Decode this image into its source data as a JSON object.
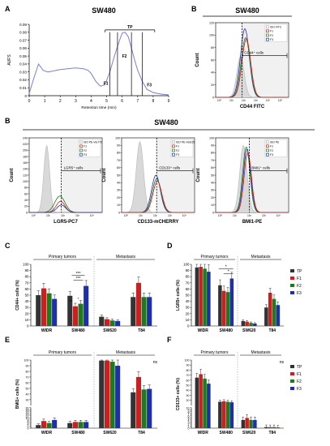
{
  "figure": {
    "colors": {
      "TP": "#333333",
      "F1": "#cc1f1f",
      "F2": "#1f7a1f",
      "F3": "#1f2fa8",
      "chrom": "#7b7fd6",
      "iso": "#b8b8b8"
    },
    "panelA": {
      "letter": "A",
      "cell": "SW480"
    },
    "panelB1": {
      "letter": "B",
      "cell": "SW480"
    },
    "panelB2": {
      "letter": "B",
      "cell": "SW480"
    },
    "panelC": {
      "letter": "C"
    },
    "panelD": {
      "letter": "D"
    },
    "panelE": {
      "letter": "E"
    },
    "panelF": {
      "letter": "F"
    }
  },
  "chart_data": [
    {
      "id": "A",
      "type": "line",
      "title": "SW480",
      "xlabel": "Retention time (min)",
      "ylabel": "AUFS",
      "xlim": [
        0,
        9
      ],
      "ylim": [
        0,
        0.09
      ],
      "x_ticks": [
        "0",
        "1",
        "2",
        "3",
        "4",
        "5",
        "6",
        "7",
        "8",
        "9"
      ],
      "y_ticks": [
        "0",
        "0.01",
        "0.02",
        "0.03",
        "0.04",
        "0.05",
        "0.06",
        "0.07",
        "0.08",
        "0.09"
      ],
      "series": [
        {
          "x": [
            0,
            0.3,
            0.6,
            0.9,
            1.2,
            1.5,
            2.0,
            2.5,
            3.0,
            3.5,
            3.8,
            4.0,
            4.3,
            4.6,
            4.9,
            5.2,
            5.5,
            5.8,
            6.0,
            6.2,
            6.4,
            6.6,
            6.8,
            7.0,
            7.3,
            7.6,
            8.0,
            8.5,
            9.0
          ],
          "y": [
            0.003,
            0.022,
            0.04,
            0.032,
            0.03,
            0.031,
            0.033,
            0.034,
            0.035,
            0.034,
            0.032,
            0.028,
            0.018,
            0.012,
            0.014,
            0.03,
            0.05,
            0.068,
            0.079,
            0.08,
            0.074,
            0.06,
            0.045,
            0.032,
            0.018,
            0.008,
            0.004,
            0.002,
            0.001
          ]
        }
      ],
      "annotations": [
        "TP",
        "F1",
        "F2",
        "F3"
      ]
    },
    {
      "id": "B1",
      "type": "line",
      "title": "SW480",
      "xlabel": "CD44 FITC",
      "ylabel": "Count",
      "legend": [
        "ISO FITC",
        "F1",
        "F2",
        "F3"
      ],
      "gate_label": "CD44⁺ cells",
      "x_ticks": [
        "10⁰",
        "10¹",
        "10²",
        "10³",
        "10⁴",
        "10⁵"
      ],
      "y_ticks": [
        "0",
        "20",
        "40",
        "60",
        "80",
        "100",
        "120"
      ]
    },
    {
      "id": "B2",
      "type": "line",
      "title": "SW480",
      "subplots": [
        {
          "xlabel": "LGR5-PC7",
          "legend": [
            "ISO PE-Vio770",
            "F1",
            "F2",
            "F3"
          ],
          "gate_label": "LGR5⁺ cells",
          "y_ticks": [
            "0",
            "20",
            "40",
            "60",
            "80",
            "100",
            "120",
            "140",
            "160",
            "180",
            "200",
            "220",
            "240"
          ]
        },
        {
          "xlabel": "CD133-mCHERRY",
          "legend": [
            "ISO PE-Vio615",
            "F1",
            "F2",
            "F3"
          ],
          "gate_label": "CD133⁺ cells",
          "y_ticks": [
            "0",
            "10",
            "20",
            "30",
            "40",
            "50",
            "60",
            "70",
            "80",
            "90",
            "100"
          ]
        },
        {
          "xlabel": "BMI1-PE",
          "legend": [
            "ISO PE",
            "F1",
            "F2",
            "F3"
          ],
          "gate_label": "BMI1⁺ cells",
          "y_ticks": [
            "0",
            "10",
            "20",
            "30",
            "40",
            "50",
            "60",
            "70",
            "80",
            "90",
            "100"
          ]
        }
      ],
      "ylabel": "Count",
      "x_ticks": [
        "10⁰",
        "10¹",
        "10²",
        "10³",
        "10⁴"
      ]
    },
    {
      "id": "C",
      "type": "bar",
      "ylabel": "CD44+ cells (%)",
      "ylim": [
        0,
        100
      ],
      "y_ticks": [
        "0",
        "10",
        "20",
        "30",
        "40",
        "50",
        "60",
        "70",
        "80",
        "90",
        "100"
      ],
      "categories": [
        "WIDR",
        "SW480",
        "SW620",
        "T84"
      ],
      "groups": [
        "Primary tumors",
        "Metastasis"
      ],
      "series": [
        {
          "name": "TP",
          "values": [
            50,
            49,
            15,
            47
          ]
        },
        {
          "name": "F1",
          "values": [
            61,
            32,
            11,
            70
          ]
        },
        {
          "name": "F2",
          "values": [
            53,
            36,
            9,
            47
          ]
        },
        {
          "name": "F3",
          "values": [
            44,
            65,
            8,
            47
          ]
        }
      ],
      "significance": [
        "***",
        "***",
        "**",
        "*"
      ]
    },
    {
      "id": "D",
      "type": "bar",
      "ylabel": "LGR5+ cells (%)",
      "ylim": [
        0,
        100
      ],
      "y_ticks": [
        "0",
        "10",
        "20",
        "30",
        "40",
        "50",
        "60",
        "70",
        "80",
        "90",
        "100"
      ],
      "categories": [
        "WIDR",
        "SW480",
        "SW620",
        "T84"
      ],
      "groups": [
        "Primary tumors",
        "Metastasis"
      ],
      "series": [
        {
          "name": "TP",
          "values": [
            95,
            66,
            8,
            30
          ]
        },
        {
          "name": "F1",
          "values": [
            96,
            57,
            7,
            54
          ]
        },
        {
          "name": "F2",
          "values": [
            93,
            55,
            5,
            44
          ]
        },
        {
          "name": "F3",
          "values": [
            88,
            77,
            4,
            34
          ]
        }
      ],
      "significance": [
        "*",
        "*"
      ],
      "legend": [
        "TP",
        "F1",
        "F2",
        "F3"
      ]
    },
    {
      "id": "E",
      "type": "bar",
      "ylabel": "BMI1+ cells (%)",
      "ylim": [
        0,
        100
      ],
      "y_ticks": [
        "0",
        "2",
        "4",
        "6",
        "8",
        "10",
        "12",
        "14",
        "16",
        "18",
        "20",
        "30",
        "40",
        "50",
        "60",
        "70",
        "80",
        "90",
        "100"
      ],
      "categories": [
        "WIDR",
        "SW480",
        "SW620",
        "T84"
      ],
      "groups": [
        "Primary tumors",
        "Metastasis"
      ],
      "series": [
        {
          "name": "TP",
          "values": [
            3,
            5,
            99,
            43
          ]
        },
        {
          "name": "F1",
          "values": [
            7,
            6,
            99,
            70
          ]
        },
        {
          "name": "F2",
          "values": [
            5,
            6,
            97,
            48
          ]
        },
        {
          "name": "F3",
          "values": [
            8,
            6,
            90,
            49
          ]
        }
      ],
      "significance": [
        "ns"
      ]
    },
    {
      "id": "F",
      "type": "bar",
      "ylabel": "CD133+ cells (%)",
      "ylim": [
        0,
        100
      ],
      "y_ticks": [
        "0",
        "1",
        "2",
        "3",
        "4",
        "5",
        "6",
        "7",
        "8",
        "9",
        "10",
        "20",
        "30",
        "40",
        "50",
        "60",
        "70",
        "80",
        "90",
        "100"
      ],
      "categories": [
        "WIDR",
        "SW480",
        "SW620",
        "T84"
      ],
      "groups": [
        "Primary tumors",
        "Metastasis"
      ],
      "series": [
        {
          "name": "TP",
          "values": [
            65,
            17,
            4,
            0.5
          ]
        },
        {
          "name": "F1",
          "values": [
            72,
            18,
            5,
            0.5
          ]
        },
        {
          "name": "F2",
          "values": [
            63,
            17,
            4,
            0.5
          ]
        },
        {
          "name": "F3",
          "values": [
            53,
            16,
            4,
            0.3
          ]
        }
      ],
      "significance": [
        "ns"
      ],
      "legend": [
        "TP",
        "F1",
        "F2",
        "F3"
      ]
    }
  ]
}
